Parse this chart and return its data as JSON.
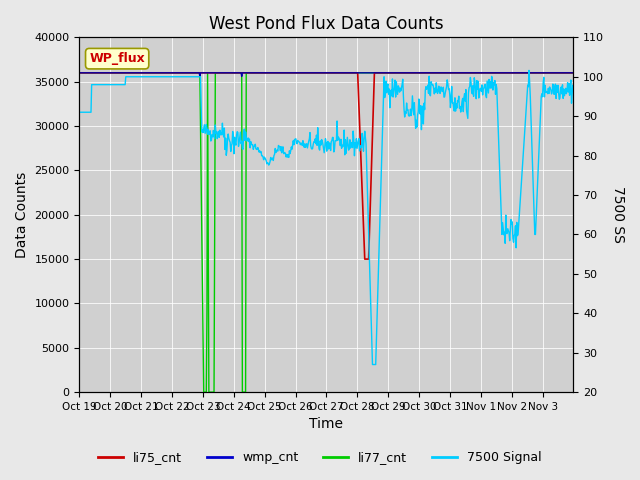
{
  "title": "West Pond Flux Data Counts",
  "xlabel": "Time",
  "ylabel_left": "Data Counts",
  "ylabel_right": "7500 SS",
  "ylim_left": [
    0,
    40000
  ],
  "ylim_right": [
    20,
    110
  ],
  "bg_color": "#e8e8e8",
  "plot_bg_color": "#d0d0d0",
  "xtick_labels": [
    "Oct 19",
    "Oct 20",
    "Oct 21",
    "Oct 22",
    "Oct 23",
    "Oct 24",
    "Oct 25",
    "Oct 26",
    "Oct 27",
    "Oct 28",
    "Oct 29",
    "Oct 30",
    "Oct 31",
    "Nov 1",
    "Nov 2",
    "Nov 3"
  ],
  "wp_flux_label": "WP_flux",
  "legend_entries": [
    "li75_cnt",
    "wmp_cnt",
    "li77_cnt",
    "7500 Signal"
  ],
  "legend_colors": [
    "#cc0000",
    "#0000cc",
    "#00cc00",
    "#00ccff"
  ],
  "line_colors": {
    "li75_cnt": "#cc0000",
    "wmp_cnt": "#0000aa",
    "li77_cnt": "#00cc00",
    "7500_signal": "#00ccff"
  }
}
